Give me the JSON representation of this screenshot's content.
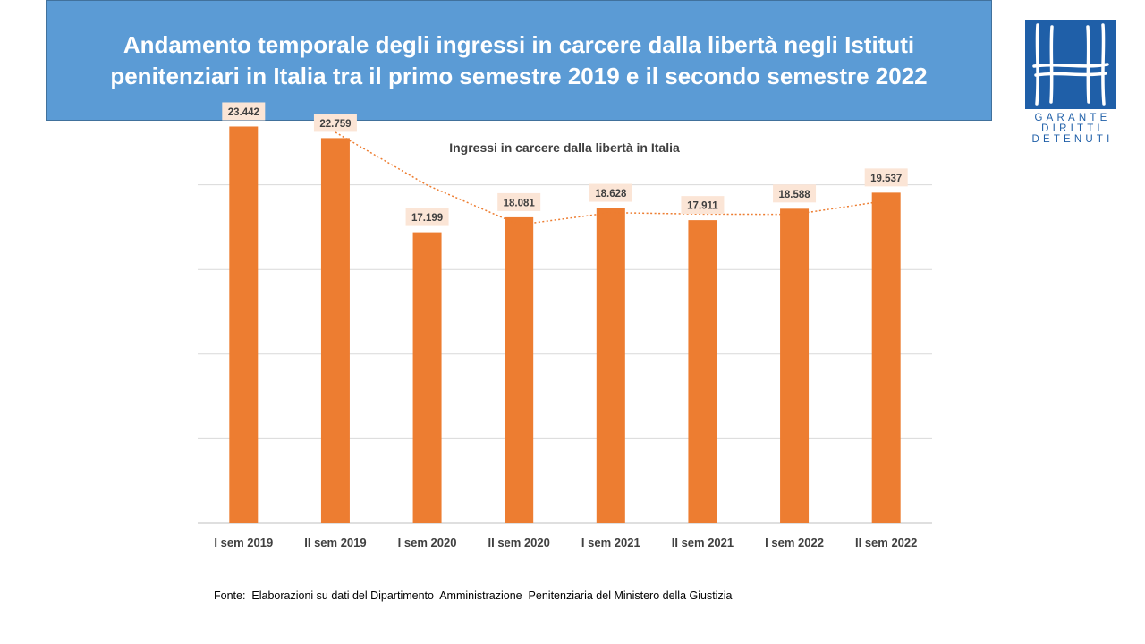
{
  "header": {
    "title_lines": [
      "Andamento temporale degli ingressi in carcere dalla libertà negli Istituti",
      "penitenziari in Italia tra il primo semestre 2019 e il secondo semestre 2022"
    ]
  },
  "logo": {
    "lines": [
      "GARANTE",
      "DIRITTI",
      "DETENUTI"
    ]
  },
  "chart_data": {
    "type": "bar",
    "title": "Ingressi in carcere dalla libertà in Italia",
    "categories": [
      "I sem 2019",
      "II sem 2019",
      "I sem 2020",
      "II sem 2020",
      "I sem 2021",
      "II sem 2021",
      "I sem 2022",
      "II sem 2022"
    ],
    "values": [
      23442,
      22759,
      17199,
      18081,
      18628,
      17911,
      18588,
      19537
    ],
    "value_labels": [
      "23.442",
      "22.759",
      "17.199",
      "18.081",
      "18.628",
      "17.911",
      "18.588",
      "19.537"
    ],
    "ylim": [
      0,
      25000
    ],
    "y_axis_labels_visible": false,
    "grid": true,
    "trendline": "moving-average, dotted",
    "colors": {
      "bar": "#ed7d31",
      "label_background": "#fbe5d6",
      "trendline": "#ed7d31",
      "grid": "#d9d9d9"
    }
  },
  "footer": {
    "source": "Fonte:  Elaborazioni su dati del Dipartimento  Amministrazione  Penitenziaria del Ministero della Giustizia"
  },
  "colors": {
    "title_background": "#5b9bd5",
    "title_text": "#ffffff",
    "logo": "#1f5fa8"
  }
}
